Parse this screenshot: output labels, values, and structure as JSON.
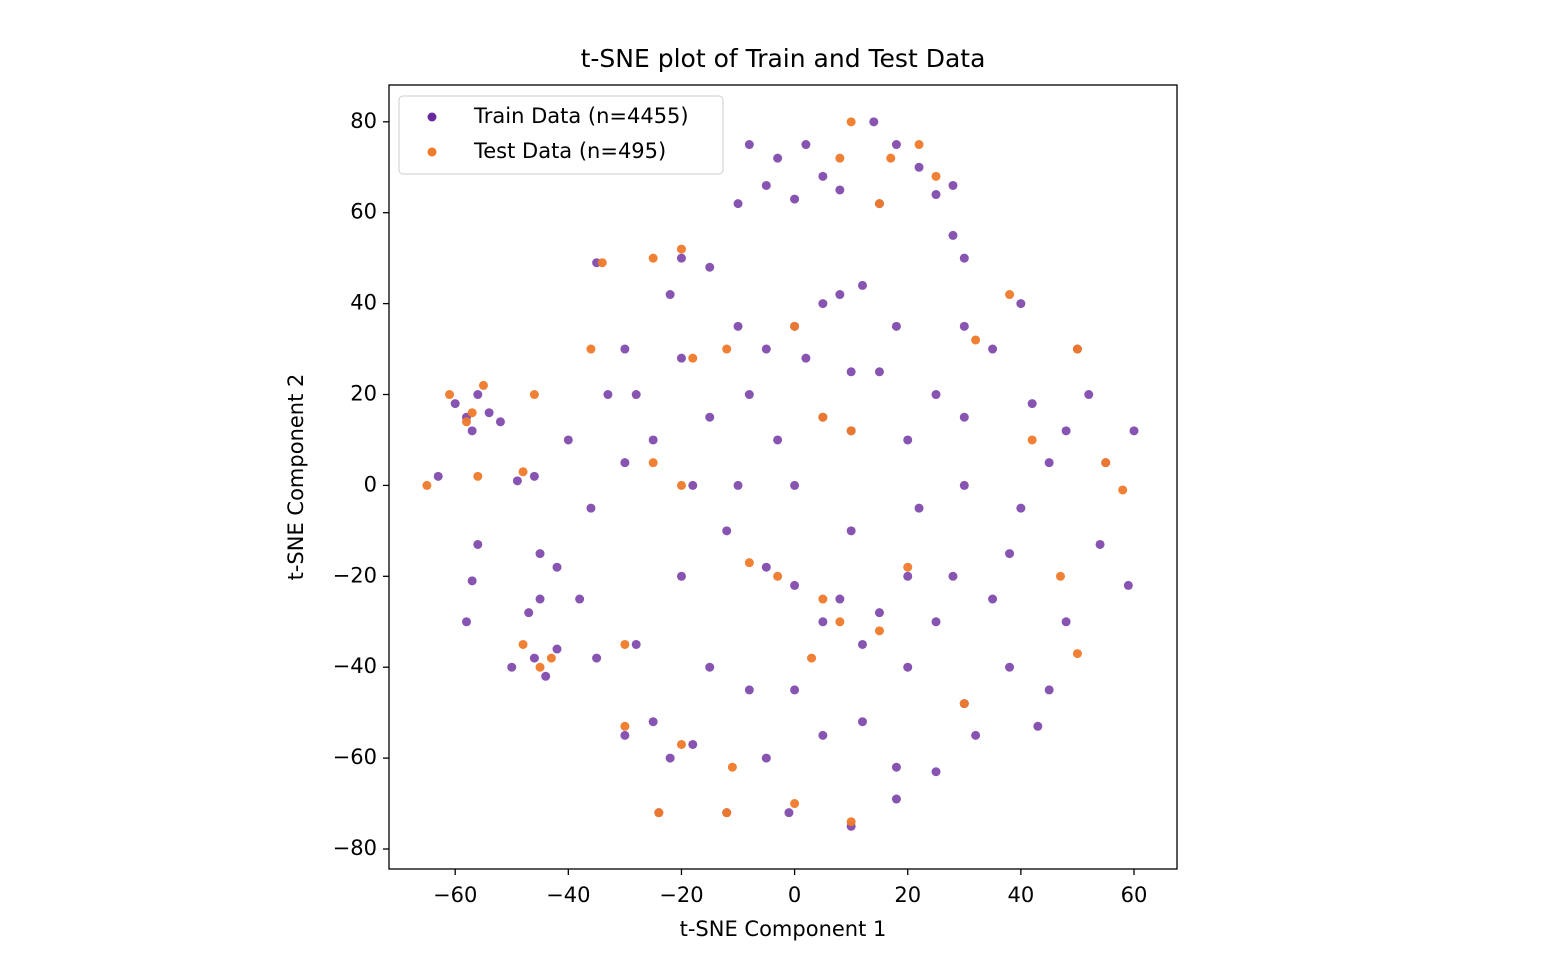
{
  "chart_data": {
    "type": "scatter",
    "title": "t-SNE plot of Train and Test Data",
    "xlabel": "t-SNE Component 1",
    "ylabel": "t-SNE Component 2",
    "xlim": [
      -71.7,
      67.6
    ],
    "ylim": [
      -84.4,
      88.1
    ],
    "xticks": [
      {
        "value": -60,
        "label": "−60"
      },
      {
        "value": -40,
        "label": "−40"
      },
      {
        "value": -20,
        "label": "−20"
      },
      0,
      20,
      40,
      60
    ],
    "yticks": [
      {
        "value": -80,
        "label": "−80"
      },
      {
        "value": -60,
        "label": "−60"
      },
      {
        "value": -40,
        "label": "−40"
      },
      {
        "value": -20,
        "label": "−20"
      },
      0,
      20,
      40,
      60,
      80
    ],
    "legend": "upper left",
    "series": [
      {
        "name": "Train Data (n=4455)",
        "color": "#6a2a9e",
        "x": [
          -63,
          -60,
          -58,
          -56,
          -54,
          -57,
          -52,
          -49,
          -46,
          -56,
          -57,
          -58,
          -50,
          -46,
          -44,
          -42,
          -47,
          -45,
          -42,
          -38,
          -40,
          -36,
          -35,
          -33,
          -30,
          -28,
          -30,
          -25,
          -22,
          -18,
          -24,
          -12,
          -1,
          10,
          -20,
          -15,
          -22,
          -20,
          -15,
          -18,
          -10,
          -8,
          -5,
          0,
          2,
          5,
          8,
          12,
          -3,
          5,
          10,
          15,
          18,
          20,
          22,
          -25,
          -28,
          -12,
          -5,
          0,
          5,
          8,
          12,
          15,
          20,
          25,
          0,
          -8,
          -15,
          5,
          12,
          -5,
          18,
          25,
          18,
          30,
          32,
          35,
          38,
          40,
          45,
          48,
          42,
          35,
          30,
          40,
          50,
          52,
          55,
          60,
          59,
          54,
          48,
          45,
          43,
          38,
          28,
          30,
          25,
          30,
          -3,
          2,
          5,
          8,
          0,
          -5,
          14,
          18,
          22,
          25,
          28,
          15,
          -10,
          -8,
          28,
          30,
          -45,
          -35,
          -10,
          10,
          0,
          -20,
          20,
          10,
          -30
        ],
        "values": [
          2,
          18,
          15,
          20,
          16,
          12,
          14,
          1,
          2,
          -13,
          -21,
          -30,
          -40,
          -38,
          -42,
          -36,
          -28,
          -15,
          -18,
          -25,
          10,
          -5,
          49,
          20,
          5,
          -35,
          -55,
          -52,
          -60,
          -57,
          -72,
          -72,
          -72,
          -75,
          50,
          48,
          42,
          28,
          15,
          0,
          35,
          20,
          30,
          35,
          28,
          40,
          42,
          44,
          10,
          15,
          12,
          25,
          35,
          10,
          -5,
          10,
          20,
          -10,
          -18,
          -22,
          -30,
          -25,
          -35,
          -28,
          -40,
          -30,
          -45,
          -45,
          -40,
          -55,
          -52,
          -60,
          -62,
          -63,
          -69,
          -48,
          -55,
          -25,
          -15,
          -5,
          5,
          12,
          18,
          30,
          35,
          40,
          30,
          20,
          5,
          12,
          -22,
          -13,
          -30,
          -45,
          -53,
          -40,
          -20,
          0,
          20,
          15,
          72,
          75,
          68,
          65,
          63,
          66,
          80,
          75,
          70,
          64,
          66,
          62,
          62,
          75,
          55,
          50,
          -25,
          -38,
          0,
          -10,
          0,
          -20,
          -20,
          25,
          30
        ]
      },
      {
        "name": "Test Data (n=495)",
        "color": "#f07a2a",
        "x": [
          -61,
          -57,
          -55,
          -58,
          -65,
          -56,
          -48,
          -46,
          -45,
          -43,
          -48,
          -34,
          -36,
          -24,
          -12,
          -11,
          0,
          10,
          -20,
          -30,
          -8,
          -3,
          5,
          8,
          15,
          3,
          -25,
          -20,
          5,
          10,
          -18,
          -12,
          0,
          10,
          17,
          22,
          25,
          15,
          8,
          32,
          38,
          42,
          50,
          55,
          58,
          50,
          30,
          -30,
          -20,
          -25,
          47,
          20
        ],
        "values": [
          20,
          16,
          22,
          14,
          0,
          2,
          3,
          20,
          -40,
          -38,
          -35,
          49,
          30,
          -72,
          -72,
          -62,
          -70,
          -74,
          -57,
          -53,
          -17,
          -20,
          -25,
          -30,
          -32,
          -38,
          50,
          52,
          15,
          12,
          28,
          30,
          35,
          80,
          72,
          75,
          68,
          62,
          72,
          32,
          42,
          10,
          30,
          5,
          -1,
          -37,
          -48,
          -35,
          0,
          5,
          -20,
          -18
        ]
      }
    ]
  }
}
